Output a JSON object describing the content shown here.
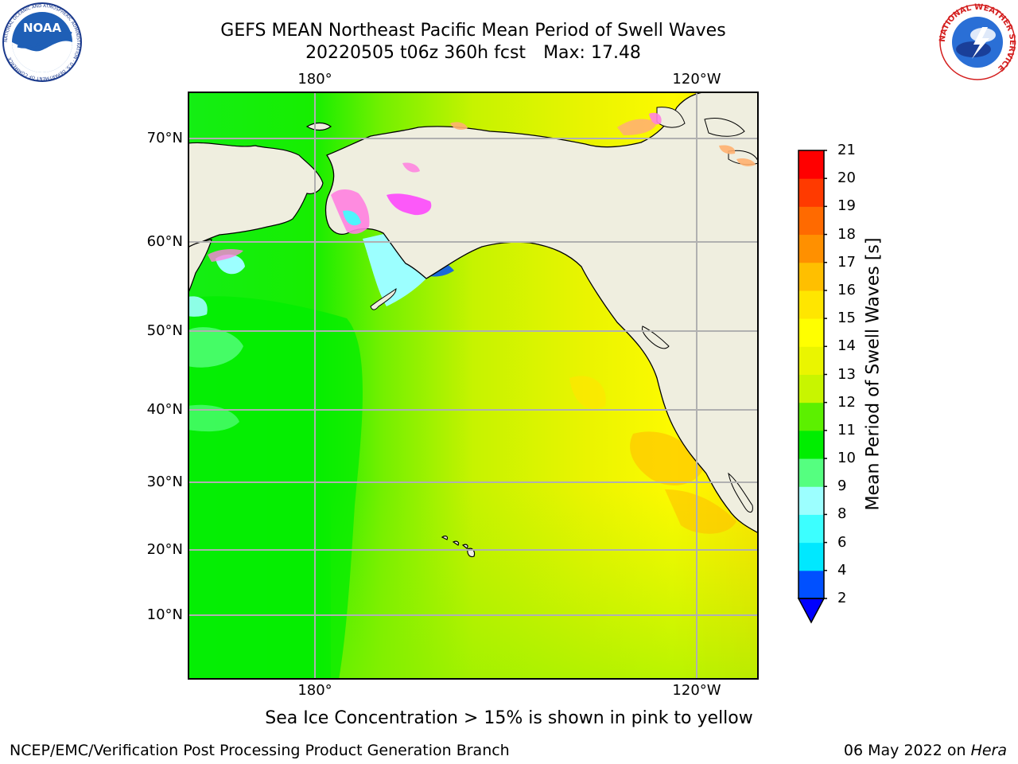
{
  "header": {
    "title_line1": "GEFS MEAN Northeast Pacific Mean Period of Swell Waves",
    "title_date": "20220505 t06z 360h fcst",
    "title_max": "Max: 17.48"
  },
  "logos": {
    "noaa_text": "NOAA",
    "noaa_ring_text": "NATIONAL OCEANIC AND ATMOSPHERIC ADMINISTRATION · U.S. DEPARTMENT OF COMMERCE",
    "nws_ring_text": "NATIONAL WEATHER SERVICE"
  },
  "map": {
    "top_lon_labels": [
      "180°",
      "120°W"
    ],
    "bottom_lon_labels": [
      "180°",
      "120°W"
    ],
    "lat_labels": [
      "70°N",
      "60°N",
      "50°N",
      "40°N",
      "30°N",
      "20°N",
      "10°N"
    ],
    "colors": {
      "land": "#efeedf",
      "coast": "#000000",
      "grid": "#b0b0b0",
      "ice_pink": "#ff7fe0",
      "ice_magenta": "#ff33ff",
      "ice_orange": "#ffb070"
    }
  },
  "colorbar": {
    "label": "Mean Period of Swell Waves [s]",
    "ticks": [
      "21",
      "20",
      "19",
      "18",
      "17",
      "16",
      "15",
      "14",
      "13",
      "12",
      "11",
      "10",
      "9",
      "8",
      "6",
      "4",
      "2"
    ],
    "colors_bottom_to_top": [
      "#0050ff",
      "#00e8ff",
      "#3cffff",
      "#9cffff",
      "#55ff80",
      "#00ee00",
      "#5cf000",
      "#c8f500",
      "#eaf500",
      "#ffff00",
      "#ffe600",
      "#ffbf00",
      "#ff9000",
      "#ff6a00",
      "#ff3a00",
      "#ff0000"
    ],
    "extend_color": "#0000ff"
  },
  "note": "Sea Ice Concentration > 15% is shown in pink to yellow",
  "footer": {
    "left": "NCEP/EMC/Verification Post Processing Product Generation Branch",
    "date": "06 May 2022 on ",
    "machine": "Hera"
  }
}
